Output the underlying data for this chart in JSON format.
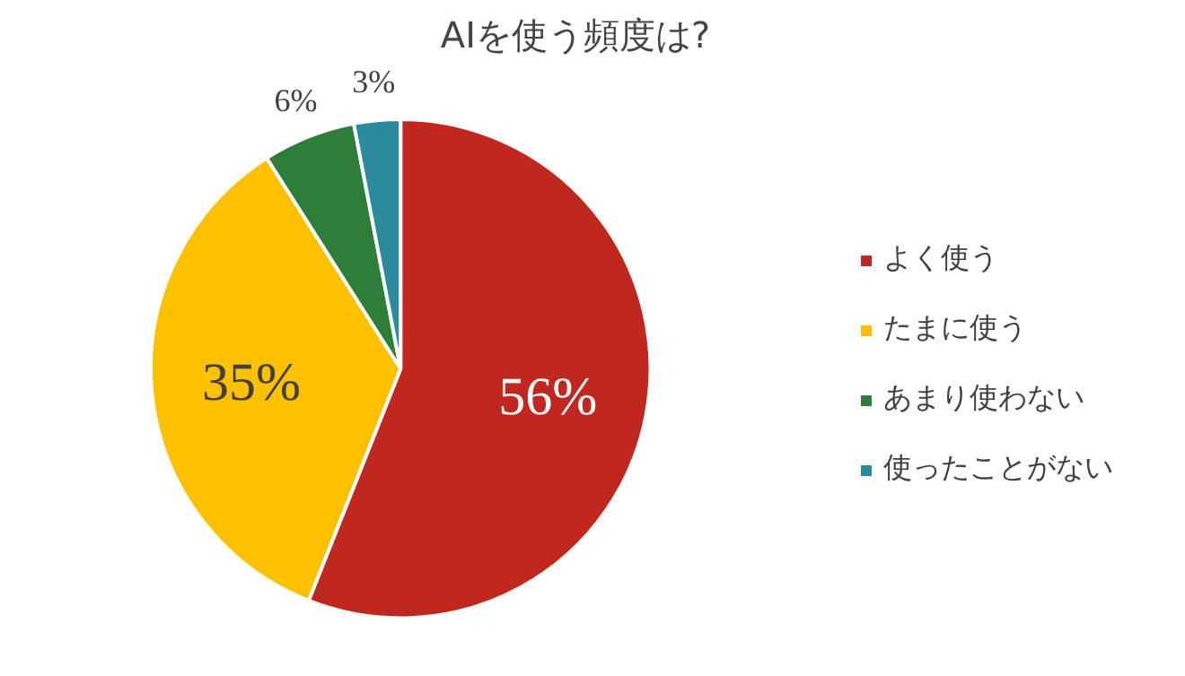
{
  "chart_data": {
    "type": "pie",
    "title": "AIを使う頻度は?",
    "categories": [
      "よく使う",
      "たまに使う",
      "あまり使わない",
      "使ったことがない"
    ],
    "values": [
      56,
      35,
      6,
      3
    ],
    "colors": [
      "#c0281f",
      "#ffc000",
      "#2e7d3a",
      "#2a8b9c"
    ],
    "value_labels": [
      "56%",
      "35%",
      "6%",
      "3%"
    ],
    "legend": "right"
  }
}
